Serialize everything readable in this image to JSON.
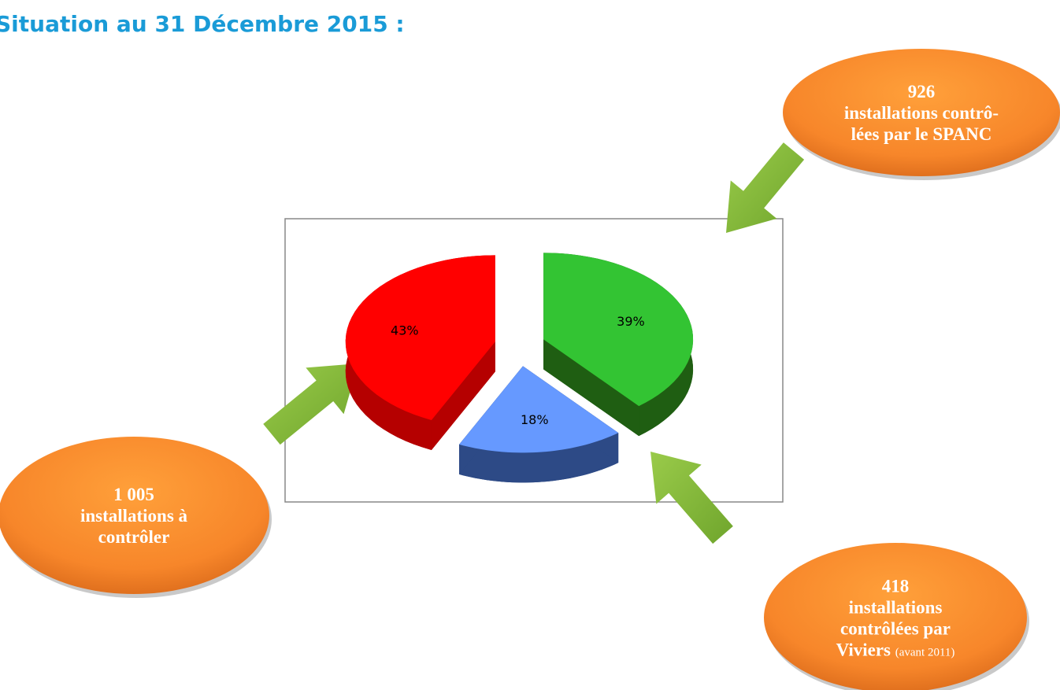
{
  "chart_data": {
    "type": "pie",
    "title": "Situation au 31  Décembre 2015 :",
    "values": [
      39,
      18,
      43
    ],
    "value_labels": [
      "39%",
      "18%",
      "43%"
    ],
    "colors": [
      "#33c433",
      "#6699ff",
      "#ff0000"
    ],
    "side_colors": [
      "#1f5e12",
      "#2d4a86",
      "#b50000"
    ],
    "annotations": [
      {
        "lines": [
          "926",
          "installations contrô-",
          "lées par le SPANC"
        ]
      },
      {
        "lines": [
          "1 005",
          "installations à",
          "contrôler"
        ]
      },
      {
        "lines": [
          "418",
          "installations",
          "contrôlées par"
        ],
        "last": "Viviers",
        "note": "(avant 2011)"
      }
    ]
  }
}
